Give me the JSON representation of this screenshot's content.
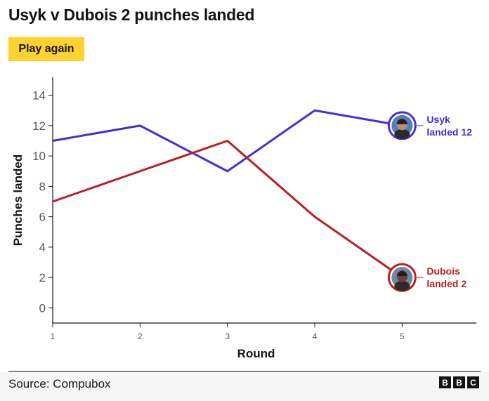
{
  "title": "Usyk v Dubois 2 punches landed",
  "play_button": "Play again",
  "source": "Source: Compubox",
  "logo": [
    "B",
    "B",
    "C"
  ],
  "colors": {
    "usyk": "#4a2bd9",
    "dubois": "#bb1e23",
    "button": "#ffd230"
  },
  "chart_data": {
    "type": "line",
    "title": "Usyk v Dubois 2 punches landed",
    "xlabel": "Round",
    "ylabel": "Punches landed",
    "x": [
      1,
      2,
      3,
      4,
      5
    ],
    "xlim": [
      1,
      5.85
    ],
    "ylim": [
      -1,
      15
    ],
    "yticks": [
      0,
      2,
      4,
      6,
      8,
      10,
      12,
      14
    ],
    "grid": false,
    "series": [
      {
        "name": "Usyk",
        "values": [
          11,
          12,
          9,
          13,
          12
        ],
        "end_label": [
          "Usyk",
          "landed 12"
        ],
        "color": "#4a2bd9"
      },
      {
        "name": "Dubois",
        "values": [
          7,
          9,
          11,
          6,
          2
        ],
        "end_label": [
          "Dubois",
          "landed 2"
        ],
        "color": "#bb1e23"
      }
    ]
  }
}
